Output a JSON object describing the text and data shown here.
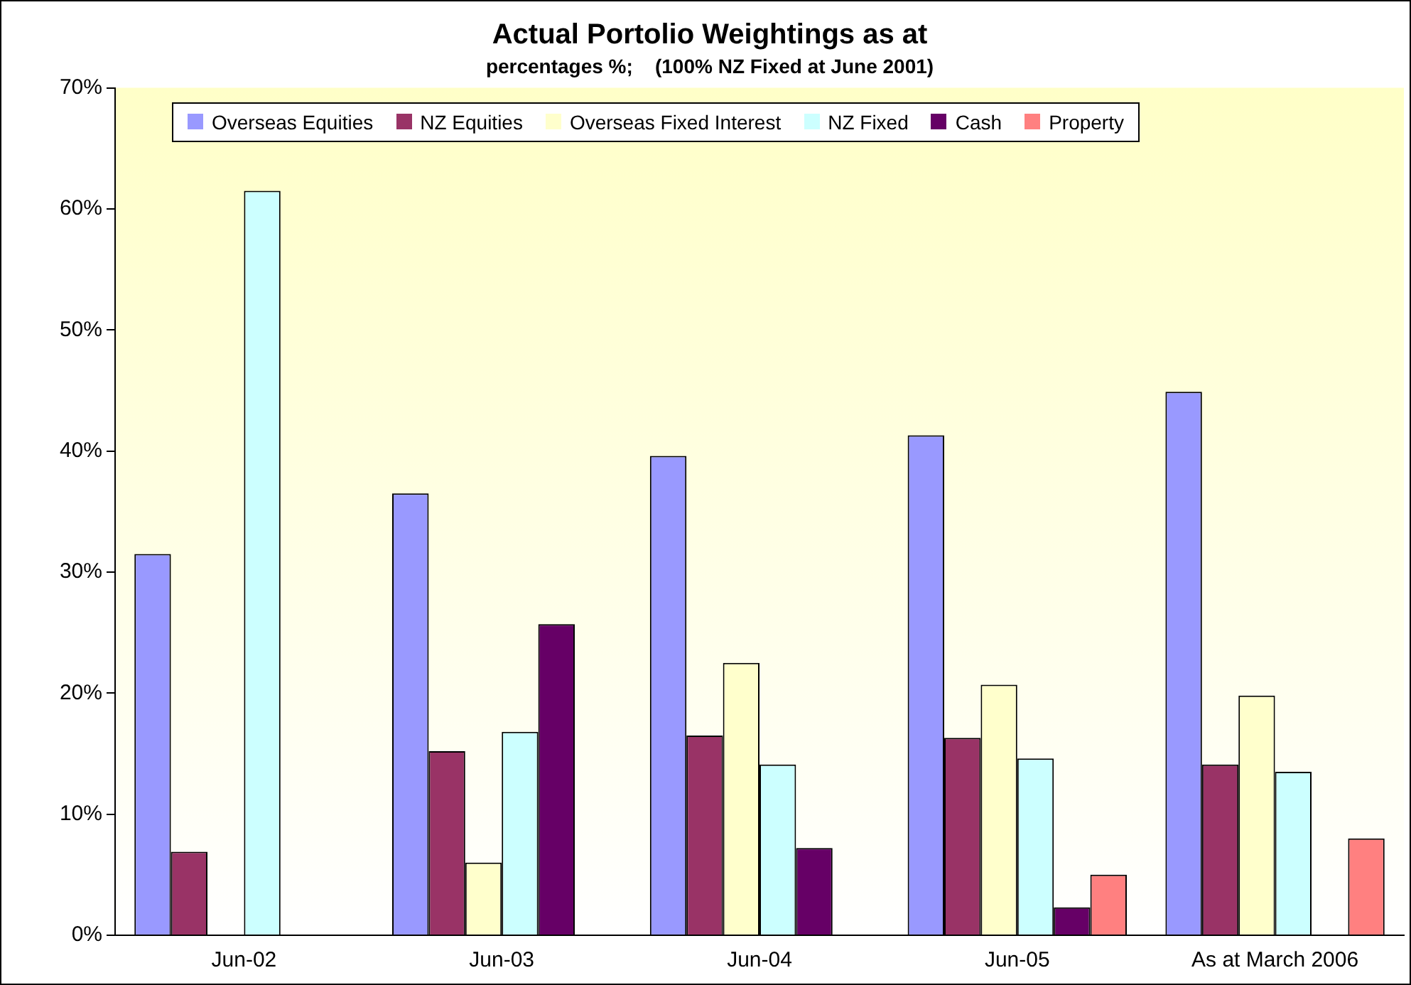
{
  "chart_data": {
    "type": "bar",
    "title": "Actual Portolio Weightings as at",
    "subtitle": "percentages %;    (100% NZ Fixed at June 2001)",
    "categories": [
      "Jun-02",
      "Jun-03",
      "Jun-04",
      "Jun-05",
      "As at March 2006"
    ],
    "series": [
      {
        "name": "Overseas Equities",
        "color": "#9999ff",
        "values": [
          31.5,
          36.5,
          39.6,
          41.3,
          44.9
        ]
      },
      {
        "name": "NZ Equities",
        "color": "#993366",
        "values": [
          6.9,
          15.2,
          16.5,
          16.3,
          14.1
        ]
      },
      {
        "name": "Overseas Fixed Interest",
        "color": "#ffffcc",
        "values": [
          null,
          6,
          22.5,
          20.7,
          19.8
        ]
      },
      {
        "name": "NZ Fixed",
        "color": "#ccffff",
        "values": [
          61.5,
          16.8,
          14.1,
          14.6,
          13.5
        ]
      },
      {
        "name": "Cash",
        "color": "#660066",
        "values": [
          null,
          25.7,
          7.2,
          2.3,
          null
        ]
      },
      {
        "name": "Property",
        "color": "#ff8080",
        "values": [
          null,
          null,
          null,
          5,
          8
        ]
      }
    ],
    "ylim": [
      0,
      70
    ],
    "yticks": [
      {
        "value": 0,
        "label": "0%"
      },
      {
        "value": 10,
        "label": "10%"
      },
      {
        "value": 20,
        "label": "20%"
      },
      {
        "value": 30,
        "label": "30%"
      },
      {
        "value": 40,
        "label": "40%"
      },
      {
        "value": 50,
        "label": "50%"
      },
      {
        "value": 60,
        "label": "60%"
      },
      {
        "value": 70,
        "label": "70%"
      }
    ],
    "grid": false,
    "legend": "top"
  }
}
